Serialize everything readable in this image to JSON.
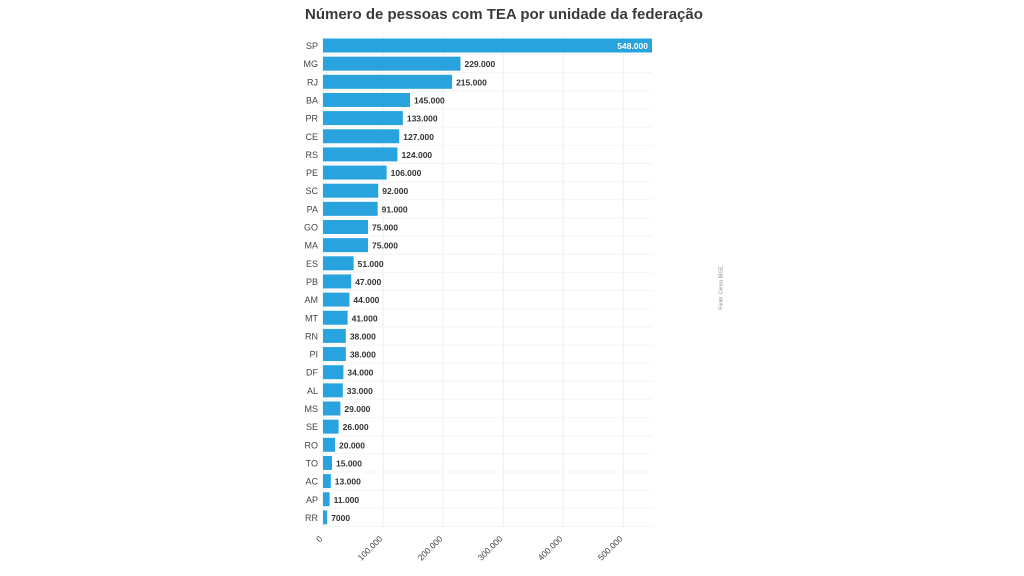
{
  "chart_data": {
    "type": "bar",
    "orientation": "horizontal",
    "title": "Número de pessoas com TEA por unidade da federação",
    "source": "Fonte: Censo IBGE",
    "categories": [
      "SP",
      "MG",
      "RJ",
      "BA",
      "PR",
      "CE",
      "RS",
      "PE",
      "SC",
      "PA",
      "GO",
      "MA",
      "ES",
      "PB",
      "AM",
      "MT",
      "RN",
      "PI",
      "DF",
      "AL",
      "MS",
      "SE",
      "RO",
      "TO",
      "AC",
      "AP",
      "RR"
    ],
    "values": [
      548000,
      229000,
      215000,
      145000,
      133000,
      127000,
      124000,
      106000,
      92000,
      91000,
      75000,
      75000,
      51000,
      47000,
      44000,
      41000,
      38000,
      38000,
      34000,
      33000,
      29000,
      26000,
      20000,
      15000,
      13000,
      11000,
      7000
    ],
    "value_labels": [
      "548.000",
      "229.000",
      "215.000",
      "145.000",
      "133.000",
      "127.000",
      "124.000",
      "106.000",
      "92.000",
      "91.000",
      "75.000",
      "75.000",
      "51.000",
      "47.000",
      "44.000",
      "41.000",
      "38.000",
      "38.000",
      "34.000",
      "33.000",
      "29.000",
      "26.000",
      "20.000",
      "15.000",
      "13.000",
      "11.000",
      "7000"
    ],
    "x_ticks": [
      0,
      100000,
      200000,
      300000,
      400000,
      500000
    ],
    "x_tick_labels": [
      "0",
      "100.000",
      "200.000",
      "300.000",
      "400.000",
      "500.000"
    ],
    "xlim": [
      0,
      548000
    ],
    "grid": true,
    "colors": {
      "bar": "#29a3dd",
      "grid": "#eeeeee",
      "label": "#333333",
      "inside_label": "#ffffff"
    }
  }
}
